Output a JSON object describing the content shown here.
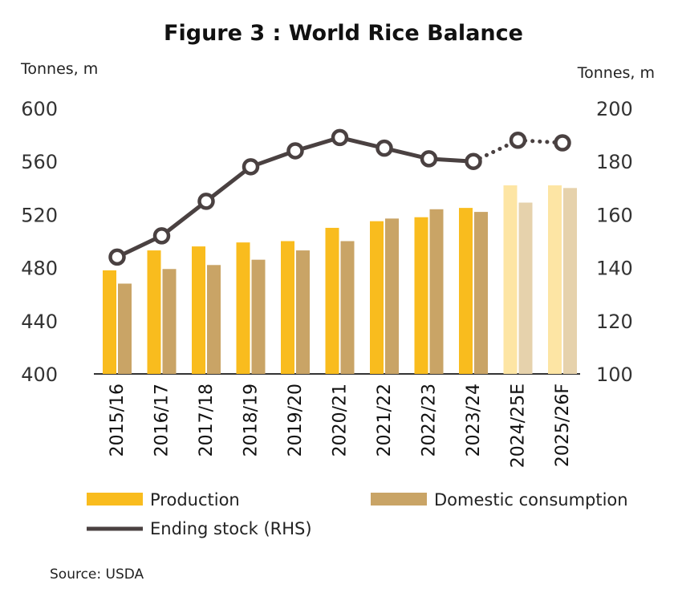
{
  "chart_data": {
    "type": "bar",
    "title": "Figure 3 : World Rice Balance",
    "ylabel_left": "Tonnes, m",
    "ylabel_right": "Tonnes, m",
    "ylim_left": [
      400,
      600
    ],
    "yticks_left": [
      "600",
      "560",
      "520",
      "480",
      "440",
      "400"
    ],
    "ylim_right": [
      100,
      200
    ],
    "yticks_right": [
      "200",
      "180",
      "160",
      "140",
      "120",
      "100"
    ],
    "categories": [
      "2015/16",
      "2016/17",
      "2017/18",
      "2018/19",
      "2019/20",
      "2020/21",
      "2021/22",
      "2022/23",
      "2023/24",
      "2024/25E",
      "2025/26F"
    ],
    "series": [
      {
        "name": "Production",
        "type": "bar",
        "axis": "left",
        "color": "#F9BC1E",
        "projected_color": "#FDE5A4",
        "values": [
          478,
          493,
          496,
          499,
          500,
          510,
          515,
          518,
          525,
          542,
          542
        ]
      },
      {
        "name": "Domestic consumption",
        "type": "bar",
        "axis": "left",
        "color": "#C9A466",
        "projected_color": "#E6D2AC",
        "values": [
          468,
          479,
          482,
          486,
          493,
          500,
          517,
          524,
          522,
          529,
          540
        ]
      },
      {
        "name": "Ending stock (RHS)",
        "type": "line",
        "axis": "right",
        "color": "#4A4141",
        "values": [
          144,
          152,
          165,
          178,
          184,
          189,
          185,
          181,
          180,
          188,
          187
        ]
      }
    ],
    "projected_categories": [
      "2024/25E",
      "2025/26F"
    ],
    "legend": [
      "Production",
      "Domestic consumption",
      "Ending stock (RHS)"
    ],
    "legend_position": "bottom",
    "grid": false
  },
  "source": "Source: USDA"
}
